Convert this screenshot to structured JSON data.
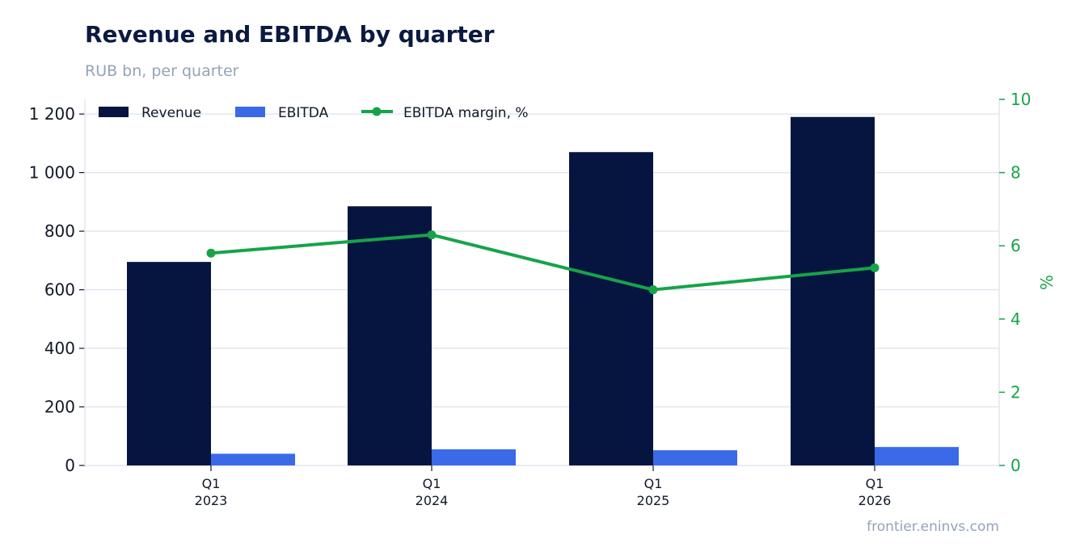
{
  "header": {
    "title": "Revenue and EBITDA by quarter",
    "subtitle": "RUB bn, per quarter"
  },
  "footer": {
    "source": "frontier.eninvs.com"
  },
  "colors": {
    "revenue": "#061440",
    "ebitda": "#3a6ae8",
    "margin": "#16a34a",
    "grid": "#e2e6f0"
  },
  "chart_data": {
    "type": "bar",
    "categories": [
      "Q1\n2023",
      "Q1\n2024",
      "Q1\n2025",
      "Q1\n2026"
    ],
    "category_lines": [
      [
        "Q1",
        "2023"
      ],
      [
        "Q1",
        "2024"
      ],
      [
        "Q1",
        "2025"
      ],
      [
        "Q1",
        "2026"
      ]
    ],
    "series": [
      {
        "name": "Revenue",
        "type": "bar",
        "axis": "left",
        "values": [
          695,
          885,
          1070,
          1190
        ]
      },
      {
        "name": "EBITDA",
        "type": "bar",
        "axis": "left",
        "values": [
          40,
          55,
          52,
          63
        ]
      },
      {
        "name": "EBITDA margin, %",
        "type": "line",
        "axis": "right",
        "values": [
          5.8,
          6.3,
          4.8,
          5.4
        ]
      }
    ],
    "ylim": [
      0,
      1250
    ],
    "yticks": [
      0,
      200,
      400,
      600,
      800,
      1000,
      1200
    ],
    "ytick_labels": [
      "0",
      "200",
      "400",
      "600",
      "800",
      "1 000",
      "1 200"
    ],
    "y2lim": [
      0,
      10
    ],
    "y2ticks": [
      0,
      2,
      4,
      6,
      8,
      10
    ],
    "y2label": "%",
    "grid": true,
    "legend": "top-left"
  }
}
